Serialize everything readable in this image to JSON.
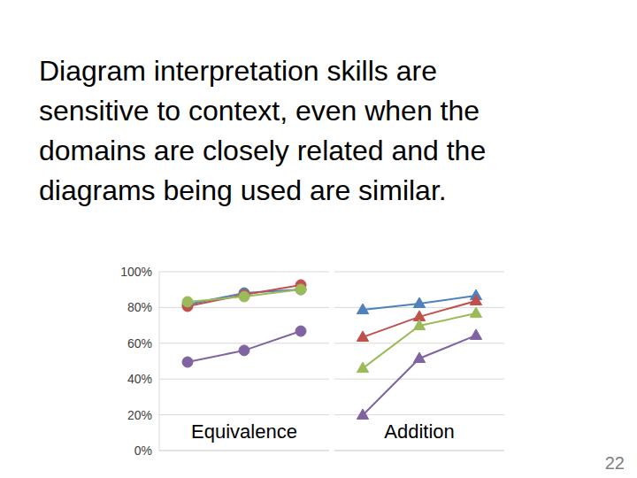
{
  "slide": {
    "text": [
      "Diagram interpretation skills are",
      "sensitive to context, even when the",
      "domains are closely related and the",
      "diagrams being used are similar."
    ],
    "page_number": 22
  },
  "chart_data": [
    {
      "type": "line",
      "annotation": "Equivalence",
      "categories": [
        null,
        null,
        null
      ],
      "series": [
        {
          "color": "#4f81bd",
          "marker": "circle",
          "values": [
            81.7,
            88.1,
            90.1
          ]
        },
        {
          "color": "#c0504d",
          "marker": "circle",
          "values": [
            80.7,
            87.1,
            92.6
          ]
        },
        {
          "color": "#9bbb59",
          "marker": "circle",
          "values": [
            83.2,
            86.1,
            90.1
          ]
        },
        {
          "color": "#8064a2",
          "marker": "circle",
          "values": [
            49.5,
            56,
            66.8
          ]
        }
      ],
      "ylim": [
        0,
        100
      ],
      "yticks": [
        {
          "value": 0,
          "label": "0%"
        },
        {
          "value": 20,
          "label": "20%"
        },
        {
          "value": 40,
          "label": "40%"
        },
        {
          "value": 60,
          "label": "60%"
        },
        {
          "value": 80,
          "label": "80%"
        },
        {
          "value": 100,
          "label": "100%"
        }
      ],
      "grid": true,
      "tick_labels": "y"
    },
    {
      "type": "line",
      "annotation": "Addition",
      "categories": [
        null,
        null,
        null
      ],
      "series": [
        {
          "color": "#4f81bd",
          "marker": "triangle",
          "values": [
            78.7,
            82.2,
            86.6
          ]
        },
        {
          "color": "#c0504d",
          "marker": "triangle",
          "values": [
            63.4,
            74.8,
            83.7
          ]
        },
        {
          "color": "#9bbb59",
          "marker": "triangle",
          "values": [
            46,
            69.8,
            76.7
          ]
        },
        {
          "color": "#8064a2",
          "marker": "triangle",
          "values": [
            19.8,
            51.5,
            64.4
          ]
        }
      ],
      "ylim": [
        0,
        100
      ],
      "yticks": [
        {
          "value": 0,
          "label": "0%"
        },
        {
          "value": 20,
          "label": "20%"
        },
        {
          "value": 40,
          "label": "40%"
        },
        {
          "value": 60,
          "label": "60%"
        },
        {
          "value": 80,
          "label": "80%"
        },
        {
          "value": 100,
          "label": "100%"
        }
      ],
      "grid": true,
      "tick_labels": false
    }
  ]
}
